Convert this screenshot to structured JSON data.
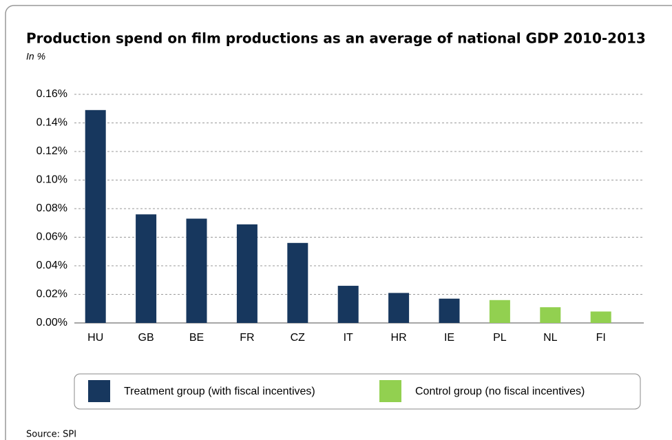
{
  "chart_data": {
    "type": "bar",
    "title": "Production spend on film productions as an average of national GDP  2010-2013",
    "subtitle": "In %",
    "source": "Source: SPI",
    "categories": [
      "HU",
      "GB",
      "BE",
      "FR",
      "CZ",
      "IT",
      "HR",
      "IE",
      "PL",
      "NL",
      "FI"
    ],
    "series": [
      {
        "name": "Treatment group (with fiscal incentives)",
        "color": "#17375e",
        "values": [
          0.149,
          0.076,
          0.073,
          0.069,
          0.056,
          0.026,
          0.021,
          0.017,
          null,
          null,
          null
        ]
      },
      {
        "name": "Control group (no fiscal incentives)",
        "color": "#92d050",
        "values": [
          null,
          null,
          null,
          null,
          null,
          null,
          null,
          null,
          0.016,
          0.011,
          0.008
        ]
      }
    ],
    "ylim": [
      0,
      0.16
    ],
    "yticks": [
      {
        "value": 0,
        "label": "0.00%"
      },
      {
        "value": 0.02,
        "label": "0.02%"
      },
      {
        "value": 0.04,
        "label": "0.04%"
      },
      {
        "value": 0.06,
        "label": "0.06%"
      },
      {
        "value": 0.08,
        "label": "0.08%"
      },
      {
        "value": 0.1,
        "label": "0.10%"
      },
      {
        "value": 0.12,
        "label": "0.12%"
      },
      {
        "value": 0.14,
        "label": "0.14%"
      },
      {
        "value": 0.16,
        "label": "0.16%"
      }
    ],
    "grid": true,
    "legend": "bottom"
  }
}
